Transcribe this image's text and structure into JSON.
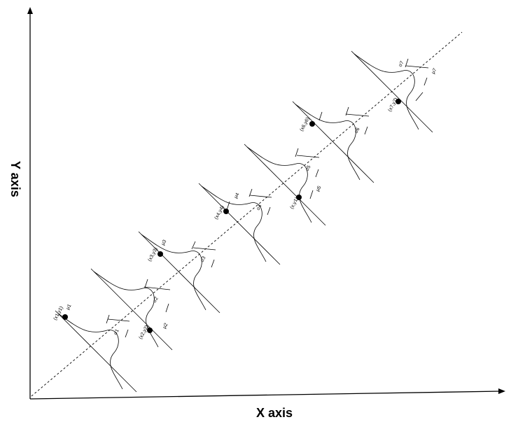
{
  "axes": {
    "x_label": "X axis",
    "y_label": "Y axis"
  },
  "points": [
    {
      "coord": "(x1,y1)",
      "mu": "μ1",
      "sigma": "σ1"
    },
    {
      "coord": "(x2,y2)",
      "mu": "μ2",
      "sigma": "σ2"
    },
    {
      "coord": "(x3,y3)",
      "mu": "μ3",
      "sigma": "σ3"
    },
    {
      "coord": "(x4,y4)",
      "mu": "μ4",
      "sigma": "σ4"
    },
    {
      "coord": "(x,y1)",
      "mu": "μ5",
      "sigma": "σ5"
    },
    {
      "coord": "(x6,y6)",
      "mu": "",
      "sigma": "σ6"
    },
    {
      "coord": "(x7,y7)",
      "mu": "μ7",
      "sigma": "σ7"
    }
  ]
}
